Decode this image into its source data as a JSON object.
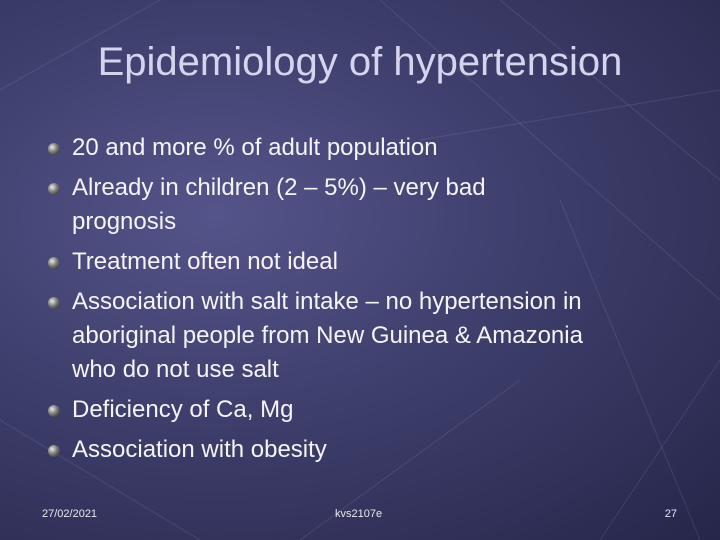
{
  "slide": {
    "title": "Epidemiology of hypertension",
    "bullets": [
      {
        "lines": [
          "20 and more % of adult population"
        ]
      },
      {
        "lines": [
          "Already in children (2 – 5%) – very bad",
          "prognosis"
        ]
      },
      {
        "lines": [
          "Treatment often not ideal"
        ]
      },
      {
        "lines": [
          "Association with salt intake – no hypertension in",
          "aboriginal people from New Guinea & Amazonia",
          "who do not use salt"
        ]
      },
      {
        "lines": [
          "Deficiency of Ca, Mg"
        ]
      },
      {
        "lines": [
          "Association with obesity"
        ]
      }
    ],
    "footer": {
      "date": "27/02/2021",
      "center": "kvs2107e",
      "page": "27"
    }
  }
}
